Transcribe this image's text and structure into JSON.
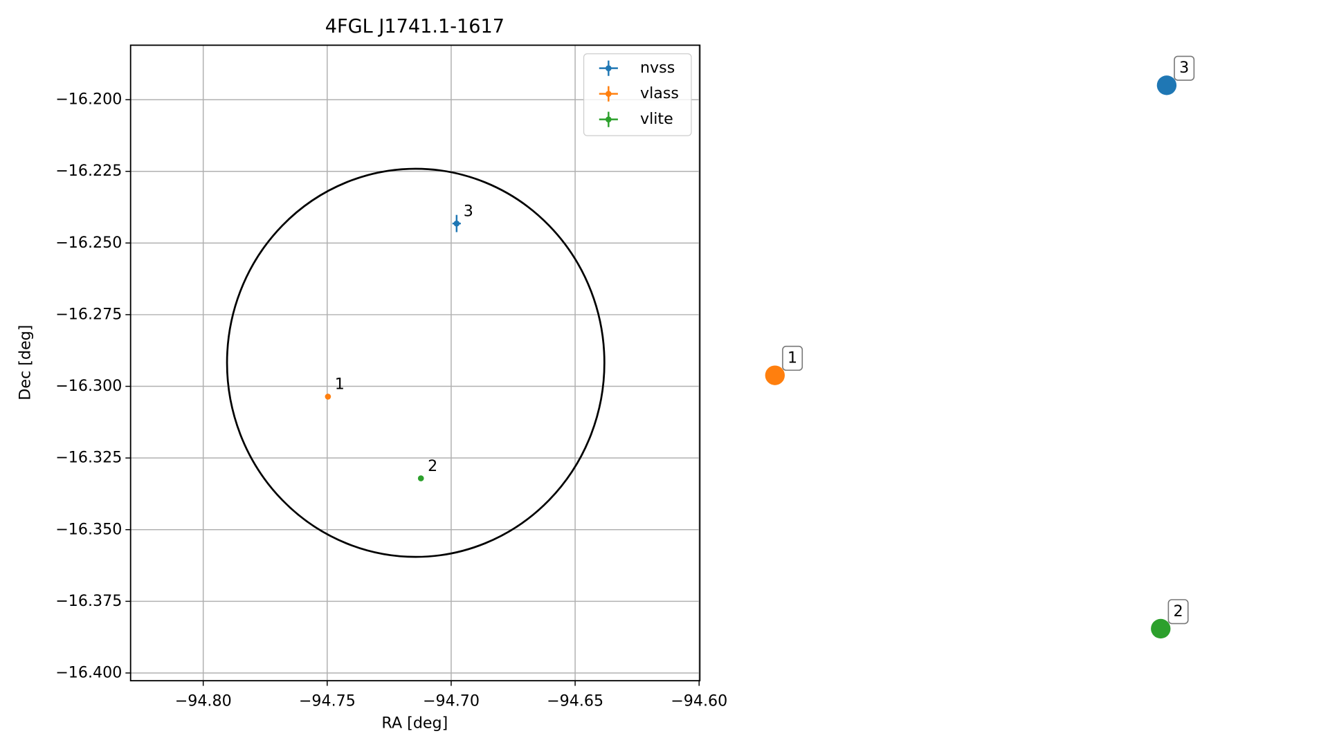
{
  "chart_data": {
    "type": "errorbar-scatter",
    "title": "4FGL J1741.1-1617",
    "x_label": "RA [deg]",
    "y_label": "Dec [deg]",
    "xlim": [
      -94.8293,
      -94.5997
    ],
    "ylim": [
      -16.4027,
      -16.181
    ],
    "xticks": [
      {
        "value": -94.8,
        "label": "−94.80"
      },
      {
        "value": -94.75,
        "label": "−94.75"
      },
      {
        "value": -94.7,
        "label": "−94.70"
      },
      {
        "value": -94.65,
        "label": "−94.65"
      },
      {
        "value": -94.6,
        "label": "−94.60"
      }
    ],
    "yticks": [
      {
        "value": -16.2,
        "label": "−16.200"
      },
      {
        "value": -16.225,
        "label": "−16.225"
      },
      {
        "value": -16.25,
        "label": "−16.250"
      },
      {
        "value": -16.275,
        "label": "−16.275"
      },
      {
        "value": -16.3,
        "label": "−16.300"
      },
      {
        "value": -16.325,
        "label": "−16.325"
      },
      {
        "value": -16.35,
        "label": "−16.350"
      },
      {
        "value": -16.375,
        "label": "−16.375"
      },
      {
        "value": -16.4,
        "label": "−16.400"
      }
    ],
    "grid": true,
    "legend": "upper right",
    "ellipse": {
      "center_ra": -94.7143,
      "center_dec": -16.2918,
      "width": 0.1522,
      "height": 0.1354,
      "color": "#000000"
    },
    "series": [
      {
        "name": "nvss",
        "color": "#1f77b4",
        "x": [
          -94.6978
        ],
        "values": [
          -16.2432
        ],
        "xerr": [
          0.0017
        ],
        "yerr": [
          0.003
        ],
        "labels": [
          "3"
        ]
      },
      {
        "name": "vlass",
        "color": "#ff7f0e",
        "x": [
          -94.7497
        ],
        "values": [
          -16.3036
        ],
        "xerr": [
          0.0005
        ],
        "yerr": [
          0.0005
        ],
        "labels": [
          "1"
        ]
      },
      {
        "name": "vlite",
        "color": "#2ca02c",
        "x": [
          -94.7122
        ],
        "values": [
          -16.3321
        ],
        "xerr": [
          0.0005
        ],
        "yerr": [
          0.0005
        ],
        "labels": [
          "2"
        ]
      }
    ]
  }
}
